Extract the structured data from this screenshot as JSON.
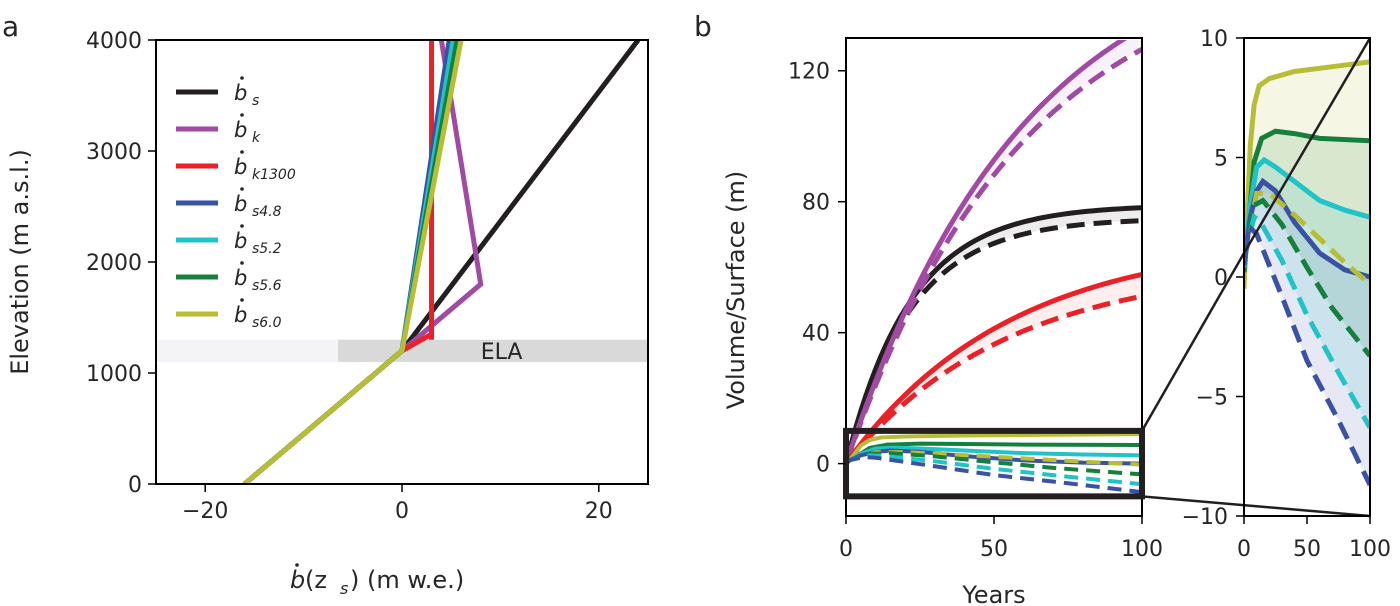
{
  "figure": {
    "panel_a_letter": "a",
    "panel_b_letter": "b"
  },
  "chart_data": [
    {
      "type": "line",
      "title": "",
      "xlabel_main": "b",
      "xlabel_sub": "(z",
      "xlabel_subscript": "s",
      "xlabel_tail": ") (m w.e.)",
      "ylabel": "Elevation (m a.s.l.)",
      "xlim": [
        -25,
        25
      ],
      "ylim": [
        0,
        4000
      ],
      "xticks": [
        -20,
        0,
        20
      ],
      "xtick_labels": [
        "−20",
        "0",
        "20"
      ],
      "yticks": [
        0,
        1000,
        2000,
        3000,
        4000
      ],
      "ytick_labels": [
        "0",
        "1000",
        "2000",
        "3000",
        "4000"
      ],
      "ela": {
        "label": "ELA",
        "elevation": 1200,
        "band": [
          1100,
          1300
        ]
      },
      "legend_position": "top-left",
      "series": [
        {
          "name": "b",
          "sub": "s",
          "color": "#231f20",
          "x": [
            -16,
            0,
            24
          ],
          "y": [
            0,
            1200,
            4000
          ]
        },
        {
          "name": "b",
          "sub": "k",
          "color": "#a14aa3",
          "x": [
            -16,
            0,
            8,
            4
          ],
          "y": [
            0,
            1200,
            1800,
            4000
          ]
        },
        {
          "name": "b",
          "sub": "k1300",
          "color": "#ec2127",
          "x": [
            -16,
            0,
            3,
            3,
            3
          ],
          "y": [
            0,
            1200,
            1350,
            1300,
            4000
          ]
        },
        {
          "name": "b",
          "sub": "s4.8",
          "color": "#3b52a4",
          "x": [
            -16,
            0,
            4.8
          ],
          "y": [
            0,
            1200,
            4000
          ]
        },
        {
          "name": "b",
          "sub": "s5.2",
          "color": "#1fc3c8",
          "x": [
            -16,
            0,
            5.2
          ],
          "y": [
            0,
            1200,
            4000
          ]
        },
        {
          "name": "b",
          "sub": "s5.6",
          "color": "#15803c",
          "x": [
            -16,
            0,
            5.6
          ],
          "y": [
            0,
            1200,
            4000
          ]
        },
        {
          "name": "b",
          "sub": "s6.0",
          "color": "#b8bd36",
          "x": [
            -16,
            0,
            6.0
          ],
          "y": [
            0,
            1200,
            4000
          ]
        }
      ]
    },
    {
      "type": "line",
      "title": "",
      "xlabel": "Years",
      "ylabel": "Volume/Surface (m)",
      "xlim": [
        0,
        100
      ],
      "ylim": [
        -16,
        130
      ],
      "xticks": [
        0,
        50,
        100
      ],
      "xtick_labels": [
        "0",
        "50",
        "100"
      ],
      "yticks": [
        0,
        40,
        80,
        120
      ],
      "ytick_labels": [
        "0",
        "40",
        "80",
        "120"
      ],
      "zoom_box": {
        "x": [
          0,
          100
        ],
        "y": [
          -10,
          10
        ]
      },
      "series": [
        {
          "name": "b_s volume",
          "color": "#231f20",
          "tau": 22,
          "A": 79,
          "dashed_A": 75
        },
        {
          "name": "b_k volume",
          "color": "#a14aa3",
          "tau": 60,
          "A": 164,
          "dashed_A": 156
        },
        {
          "name": "b_k1300 volume",
          "color": "#ec2127",
          "tau": 55,
          "A": 69,
          "dashed_A": 61
        }
      ]
    },
    {
      "type": "line",
      "title": "",
      "xlabel": "",
      "ylabel": "",
      "xlim": [
        0,
        100
      ],
      "ylim": [
        -10,
        10
      ],
      "xticks": [
        0,
        50,
        100
      ],
      "xtick_labels": [
        "0",
        "50",
        "100"
      ],
      "yticks": [
        -10,
        -5,
        0,
        5,
        10
      ],
      "ytick_labels": [
        "−10",
        "−5",
        "0",
        "5",
        "10"
      ],
      "series": [
        {
          "name": "b_s6.0 solid",
          "color": "#b8bd36",
          "dashed": false,
          "points": [
            [
              0,
              -0.5
            ],
            [
              2,
              2
            ],
            [
              5,
              5.5
            ],
            [
              8,
              7.2
            ],
            [
              12,
              8
            ],
            [
              20,
              8.3
            ],
            [
              40,
              8.6
            ],
            [
              70,
              8.8
            ],
            [
              100,
              9
            ]
          ]
        },
        {
          "name": "b_s5.6 solid",
          "color": "#15803c",
          "dashed": false,
          "points": [
            [
              0,
              0.2
            ],
            [
              4,
              2.5
            ],
            [
              8,
              4.8
            ],
            [
              14,
              5.8
            ],
            [
              25,
              6.1
            ],
            [
              40,
              6
            ],
            [
              60,
              5.8
            ],
            [
              100,
              5.7
            ]
          ]
        },
        {
          "name": "b_s5.2 solid",
          "color": "#1fc3c8",
          "dashed": false,
          "points": [
            [
              0,
              0.4
            ],
            [
              5,
              3
            ],
            [
              10,
              4.6
            ],
            [
              16,
              4.9
            ],
            [
              25,
              4.6
            ],
            [
              40,
              4
            ],
            [
              60,
              3.2
            ],
            [
              80,
              2.8
            ],
            [
              100,
              2.5
            ]
          ]
        },
        {
          "name": "b_s4.8 solid",
          "color": "#3b52a4",
          "dashed": false,
          "points": [
            [
              0,
              0.5
            ],
            [
              5,
              2.5
            ],
            [
              10,
              3.6
            ],
            [
              15,
              4
            ],
            [
              25,
              3.6
            ],
            [
              40,
              2.3
            ],
            [
              60,
              1
            ],
            [
              80,
              0.3
            ],
            [
              100,
              0
            ]
          ]
        },
        {
          "name": "b_s6.0 dashed",
          "color": "#b8bd36",
          "dashed": true,
          "points": [
            [
              0,
              0.8
            ],
            [
              10,
              3.5
            ],
            [
              20,
              3.5
            ],
            [
              40,
              2.6
            ],
            [
              60,
              1.6
            ],
            [
              80,
              0.6
            ],
            [
              100,
              -0.3
            ]
          ]
        },
        {
          "name": "b_s5.6 dashed",
          "color": "#15803c",
          "dashed": true,
          "points": [
            [
              0,
              0.8
            ],
            [
              8,
              3
            ],
            [
              15,
              3.2
            ],
            [
              30,
              2.2
            ],
            [
              50,
              0.4
            ],
            [
              70,
              -1.3
            ],
            [
              100,
              -3.3
            ]
          ]
        },
        {
          "name": "b_s5.2 dashed",
          "color": "#1fc3c8",
          "dashed": true,
          "points": [
            [
              0,
              0.8
            ],
            [
              8,
              2.5
            ],
            [
              12,
              2.4
            ],
            [
              30,
              0.7
            ],
            [
              50,
              -1.6
            ],
            [
              75,
              -4
            ],
            [
              100,
              -6.3
            ]
          ]
        },
        {
          "name": "b_s4.8 dashed",
          "color": "#3b52a4",
          "dashed": true,
          "points": [
            [
              0,
              0.8
            ],
            [
              6,
              2
            ],
            [
              10,
              1.8
            ],
            [
              30,
              -0.8
            ],
            [
              50,
              -3.5
            ],
            [
              75,
              -6
            ],
            [
              100,
              -8.7
            ]
          ]
        }
      ]
    }
  ]
}
